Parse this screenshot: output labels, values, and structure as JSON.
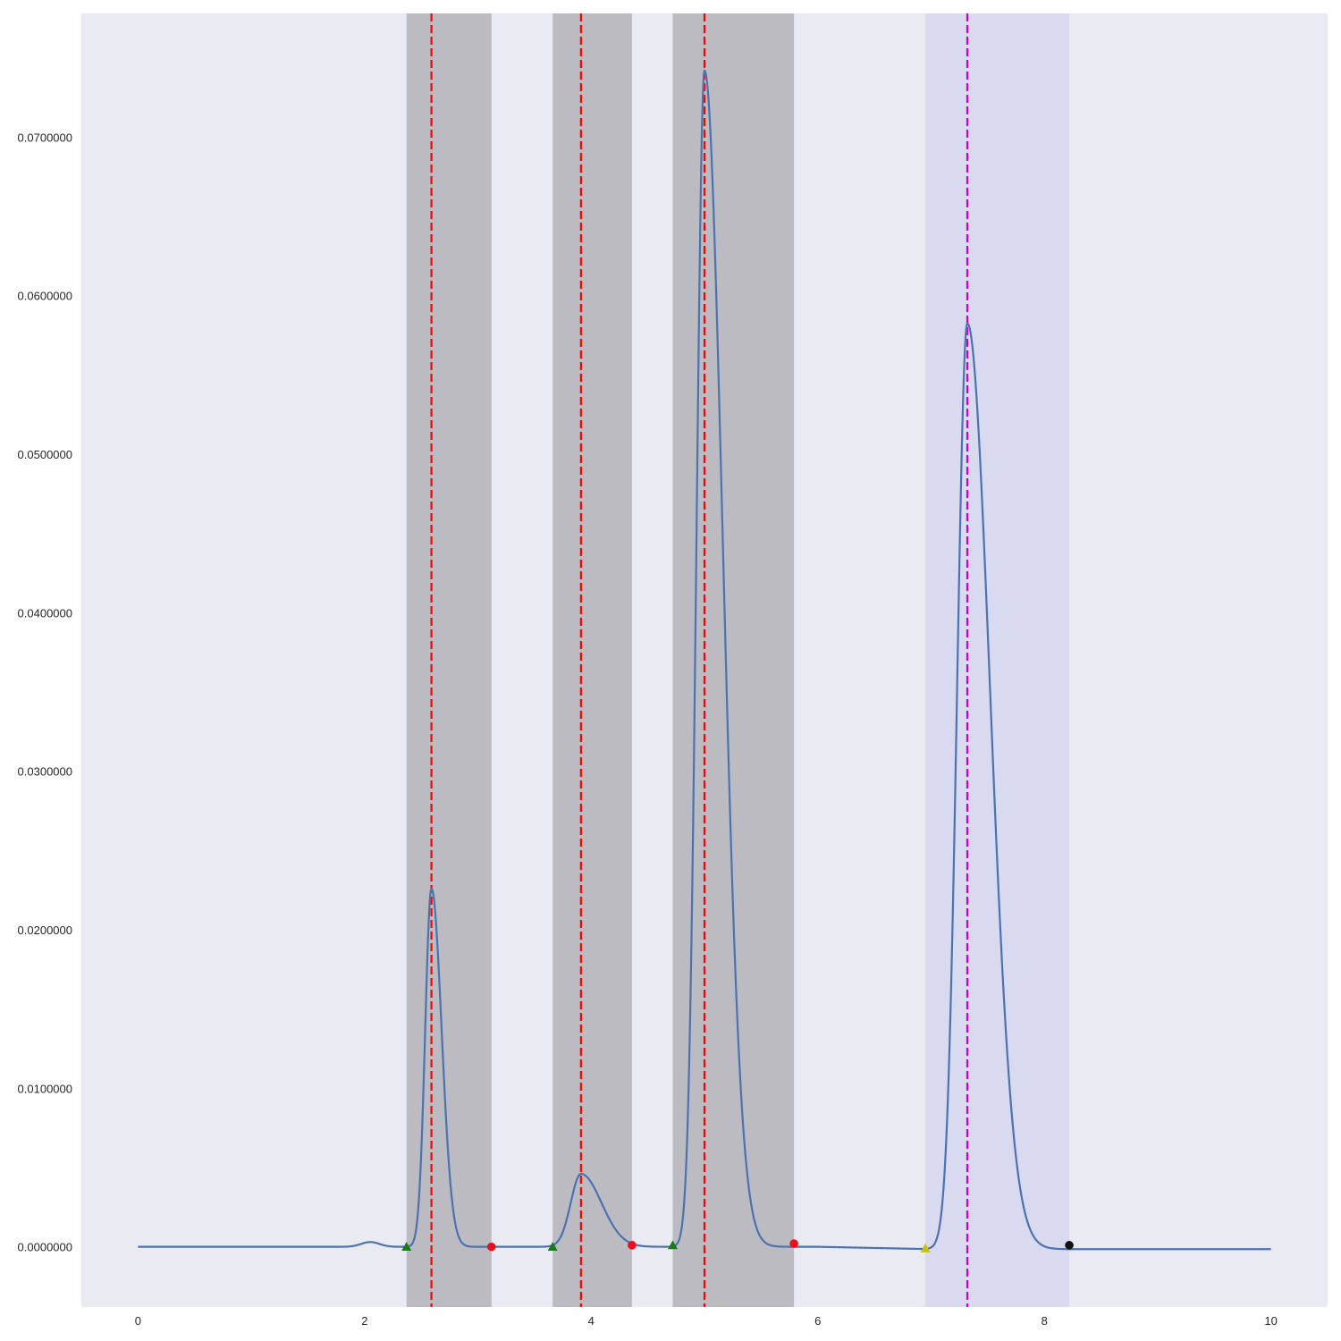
{
  "chart_data": {
    "type": "line",
    "title": "",
    "xlabel": "",
    "ylabel": "",
    "xlim": [
      -0.5,
      10.5
    ],
    "ylim": [
      -0.0038,
      0.0778
    ],
    "grid": false,
    "x_ticks": [
      0,
      2,
      4,
      6,
      8,
      10
    ],
    "x_tick_labels": [
      "0",
      "2",
      "4",
      "6",
      "8",
      "10"
    ],
    "y_ticks": [
      0.0,
      0.01,
      0.02,
      0.03,
      0.04,
      0.05,
      0.06,
      0.07
    ],
    "y_tick_labels": [
      "0.0000000",
      "0.0100000",
      "0.0200000",
      "0.0300000",
      "0.0400000",
      "0.0500000",
      "0.0600000",
      "0.0700000"
    ],
    "series": [
      {
        "color": "#4c72b0",
        "baseline_x": [
          0,
          10
        ],
        "peaks": [
          {
            "center": 2.59,
            "height": 0.0226,
            "sigma_left": 0.055,
            "sigma_right": 0.09
          },
          {
            "center": 3.91,
            "height": 0.0046,
            "sigma_left": 0.09,
            "sigma_right": 0.18
          },
          {
            "center": 5.0,
            "height": 0.0742,
            "sigma_left": 0.07,
            "sigma_right": 0.16
          },
          {
            "center": 7.32,
            "height": 0.0584,
            "sigma_left": 0.09,
            "sigma_right": 0.2
          }
        ],
        "bumps": [
          {
            "center": 2.05,
            "height": 0.0003,
            "sigma": 0.08
          }
        ]
      }
    ],
    "shaded_regions": [
      {
        "x0": 2.37,
        "x1": 3.12,
        "color": "#bbbbc1"
      },
      {
        "x0": 3.66,
        "x1": 4.36,
        "color": "#bbbbc1"
      },
      {
        "x0": 4.72,
        "x1": 5.79,
        "color": "#bbbbc1"
      },
      {
        "x0": 6.95,
        "x1": 8.22,
        "color": "#d9d9ef"
      }
    ],
    "vertical_lines": [
      {
        "x": 2.59,
        "color": "#ff0000",
        "style": "dashed"
      },
      {
        "x": 3.91,
        "color": "#ff0000",
        "style": "dashed"
      },
      {
        "x": 5.0,
        "color": "#ff0000",
        "style": "dashed"
      },
      {
        "x": 7.32,
        "color": "#cc00cc",
        "style": "dashed"
      }
    ],
    "markers": [
      {
        "x": 2.37,
        "y": 0.0,
        "shape": "triangle",
        "color": "#1a7a1a"
      },
      {
        "x": 3.12,
        "y": 0.0,
        "shape": "circle",
        "color": "#e8101e"
      },
      {
        "x": 3.66,
        "y": 0.0,
        "shape": "triangle",
        "color": "#1a7a1a"
      },
      {
        "x": 4.36,
        "y": 0.0001,
        "shape": "circle",
        "color": "#e8101e"
      },
      {
        "x": 4.72,
        "y": 0.0001,
        "shape": "triangle",
        "color": "#1a7a1a"
      },
      {
        "x": 5.79,
        "y": 0.0002,
        "shape": "circle",
        "color": "#e8101e"
      },
      {
        "x": 6.95,
        "y": -0.0001,
        "shape": "triangle",
        "color": "#c8c000"
      },
      {
        "x": 8.22,
        "y": 0.0001,
        "shape": "circle",
        "color": "#111111"
      }
    ],
    "background_color": "#eaeaf2"
  }
}
